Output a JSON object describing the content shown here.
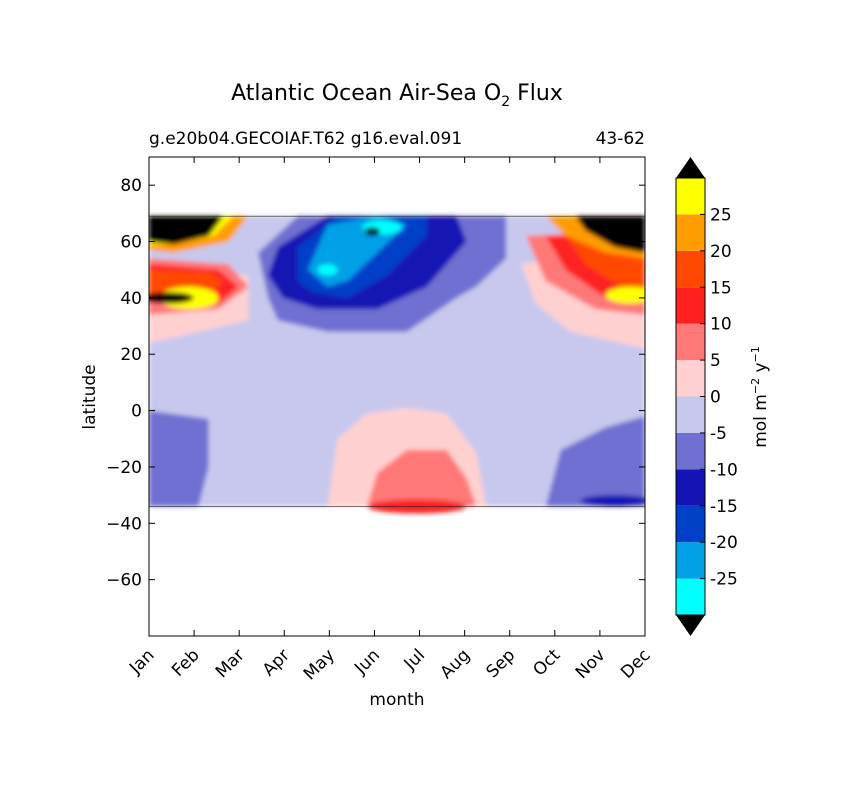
{
  "chart_data": {
    "type": "heatmap",
    "title": "Atlantic Ocean Air-Sea O",
    "title_subscript": "2",
    "title_suffix": "Flux",
    "subtitle_left": "g.e20b04.GECOIAF.T62 g16.eval.091",
    "subtitle_right": "43-62",
    "xlabel": "month",
    "ylabel": "latitude",
    "x_categories": [
      "Jan",
      "Feb",
      "Mar",
      "Apr",
      "May",
      "Jun",
      "Jul",
      "Aug",
      "Sep",
      "Oct",
      "Nov",
      "Dec"
    ],
    "ylim": [
      -80,
      90
    ],
    "y_ticks": [
      80,
      60,
      40,
      20,
      0,
      -20,
      -40,
      -60
    ],
    "y_tick_labels": [
      "80",
      "60",
      "40",
      "20",
      "0",
      "−20",
      "−40",
      "−60"
    ],
    "data_lat_range": [
      -34,
      69
    ],
    "colorbar": {
      "label_main": "mol m",
      "label_exp1": "−2",
      "label_mid": "y",
      "label_exp2": "−1",
      "levels": [
        -30,
        -25,
        -20,
        -15,
        -10,
        -5,
        0,
        5,
        10,
        15,
        20,
        25,
        30
      ],
      "tick_values": [
        25,
        20,
        15,
        10,
        5,
        0,
        -5,
        -10,
        -15,
        -20,
        -25
      ],
      "tick_labels": [
        "25",
        "20",
        "15",
        "10",
        "5",
        "0",
        "-5",
        "-10",
        "-15",
        "-20",
        "-25"
      ],
      "colors": [
        "#00ffff",
        "#00a0e6",
        "#0040c8",
        "#1414b4",
        "#7070d2",
        "#c8c8ee",
        "#ffd0d0",
        "#ff7878",
        "#ff2020",
        "#ff4800",
        "#ff9c00",
        "#ffff00"
      ],
      "extend_color": "#000000"
    },
    "grid": false
  }
}
